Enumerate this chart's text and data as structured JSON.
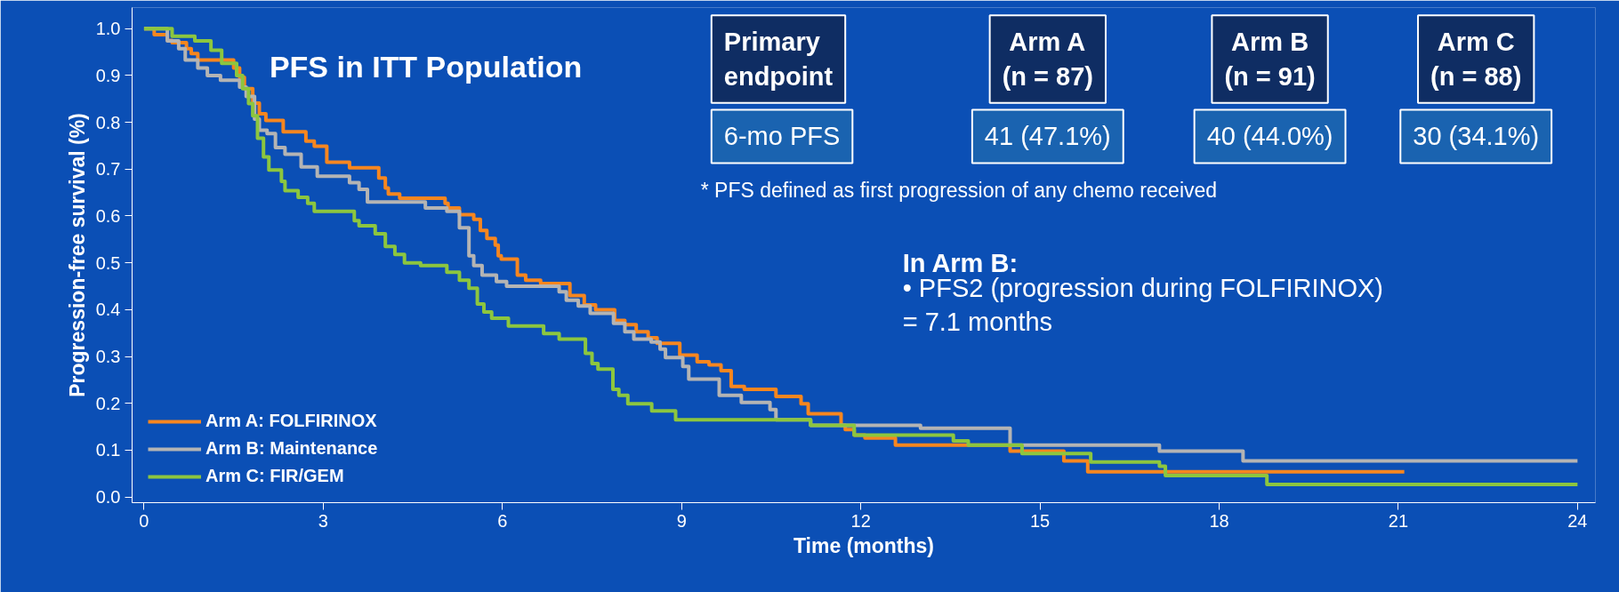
{
  "chart_data": {
    "type": "step",
    "title": "PFS in ITT Population",
    "xlabel": "Time (months)",
    "ylabel": "Progression-free survival (%)",
    "xlim": [
      -0.2,
      24.3
    ],
    "ylim": [
      -0.012,
      1.045
    ],
    "xticks": [
      0,
      3,
      6,
      9,
      12,
      15,
      18,
      21,
      24
    ],
    "yticks": [
      {
        "value": 0,
        "label": "0.0"
      },
      {
        "value": 0.1,
        "label": "0.1"
      },
      {
        "value": 0.2,
        "label": "0.2"
      },
      {
        "value": 0.3,
        "label": "0.3"
      },
      {
        "value": 0.4,
        "label": "0.4"
      },
      {
        "value": 0.5,
        "label": "0.5"
      },
      {
        "value": 0.6,
        "label": "0.6"
      },
      {
        "value": 0.7,
        "label": "0.7"
      },
      {
        "value": 0.8,
        "label": "0.8"
      },
      {
        "value": 0.9,
        "label": "0.9"
      },
      {
        "value": 1.0,
        "label": "1.0"
      }
    ],
    "grid": false,
    "legend": "bottom left",
    "marker": "none",
    "line_style": "solid",
    "series": [
      {
        "name": "Arm A: FOLFIRINOX",
        "color": "#f7861f",
        "x": [
          0,
          0.17,
          0.39,
          0.47,
          0.71,
          0.79,
          0.9,
          1.5,
          1.6,
          1.68,
          1.82,
          1.93,
          2.04,
          2.33,
          2.71,
          2.85,
          3.06,
          3.44,
          3.93,
          4.04,
          4.09,
          4.28,
          5.04,
          5.09,
          5.28,
          5.52,
          5.63,
          5.74,
          5.88,
          5.93,
          5.98,
          6.25,
          6.39,
          6.64,
          7.13,
          7.37,
          7.56,
          7.88,
          8.05,
          8.24,
          8.44,
          8.59,
          8.97,
          9.26,
          9.46,
          9.66,
          9.83,
          10.05,
          10.58,
          11.0,
          11.12,
          11.67,
          11.74,
          11.89,
          12.07,
          12.58,
          14.5,
          15.4,
          15.8,
          21.1
        ],
        "values": [
          1.0,
          0.987,
          0.975,
          0.97,
          0.957,
          0.947,
          0.933,
          0.916,
          0.896,
          0.872,
          0.841,
          0.818,
          0.804,
          0.78,
          0.76,
          0.749,
          0.715,
          0.703,
          0.681,
          0.66,
          0.647,
          0.638,
          0.627,
          0.617,
          0.603,
          0.593,
          0.569,
          0.552,
          0.538,
          0.515,
          0.508,
          0.474,
          0.463,
          0.456,
          0.43,
          0.41,
          0.4,
          0.377,
          0.368,
          0.353,
          0.34,
          0.328,
          0.303,
          0.289,
          0.282,
          0.27,
          0.236,
          0.23,
          0.215,
          0.199,
          0.178,
          0.153,
          0.144,
          0.132,
          0.126,
          0.111,
          0.098,
          0.077,
          0.054,
          0.054
        ]
      },
      {
        "name": "Arm B: Maintenance",
        "color": "#b4b4b4",
        "x": [
          0,
          0.39,
          0.58,
          0.69,
          0.9,
          1.06,
          1.28,
          1.6,
          1.71,
          1.85,
          1.93,
          2.06,
          2.2,
          2.36,
          2.63,
          2.9,
          3.44,
          3.6,
          3.74,
          4.71,
          5.07,
          5.28,
          5.44,
          5.52,
          5.66,
          5.9,
          6.07,
          6.95,
          7.07,
          7.27,
          7.47,
          7.86,
          8.05,
          8.2,
          8.49,
          8.64,
          8.73,
          9.02,
          9.12,
          9.63,
          10.0,
          10.48,
          10.58,
          11.16,
          13.0,
          14.5,
          17.0,
          18.4,
          24
        ],
        "values": [
          1.0,
          0.974,
          0.957,
          0.933,
          0.916,
          0.9,
          0.89,
          0.875,
          0.855,
          0.807,
          0.783,
          0.776,
          0.746,
          0.732,
          0.705,
          0.685,
          0.671,
          0.657,
          0.63,
          0.617,
          0.61,
          0.575,
          0.515,
          0.494,
          0.474,
          0.46,
          0.45,
          0.438,
          0.42,
          0.408,
          0.392,
          0.371,
          0.353,
          0.337,
          0.331,
          0.316,
          0.298,
          0.279,
          0.252,
          0.217,
          0.202,
          0.187,
          0.165,
          0.153,
          0.147,
          0.111,
          0.098,
          0.077,
          0.077
        ]
      },
      {
        "name": "Arm C: FIR/GEM",
        "color": "#8cc63f",
        "x": [
          0,
          0.47,
          0.85,
          1.12,
          1.3,
          1.55,
          1.65,
          1.75,
          1.82,
          1.9,
          2.0,
          2.09,
          2.3,
          2.36,
          2.58,
          2.74,
          2.85,
          3.52,
          3.6,
          3.87,
          4.04,
          4.2,
          4.36,
          4.63,
          5.07,
          5.28,
          5.44,
          5.58,
          5.69,
          5.82,
          6.1,
          6.69,
          6.95,
          7.39,
          7.5,
          7.6,
          7.85,
          7.95,
          8.1,
          8.5,
          8.9,
          11.16,
          11.89,
          13.55,
          13.8,
          14.7,
          15.85,
          17.0,
          17.1,
          18.8,
          24
        ],
        "values": [
          1.0,
          0.984,
          0.974,
          0.954,
          0.926,
          0.9,
          0.872,
          0.84,
          0.814,
          0.766,
          0.726,
          0.698,
          0.674,
          0.654,
          0.64,
          0.627,
          0.61,
          0.59,
          0.579,
          0.562,
          0.535,
          0.518,
          0.5,
          0.494,
          0.48,
          0.463,
          0.446,
          0.412,
          0.395,
          0.382,
          0.365,
          0.349,
          0.337,
          0.307,
          0.285,
          0.273,
          0.23,
          0.217,
          0.199,
          0.184,
          0.165,
          0.153,
          0.132,
          0.12,
          0.111,
          0.093,
          0.075,
          0.066,
          0.046,
          0.027,
          0.027
        ]
      }
    ],
    "annotations": [
      "Primary\nendpoint",
      "Arm A\n(n = 87)",
      "Arm B\n(n = 91)",
      "Arm C\n(n = 88)",
      "6-mo PFS",
      "41 (47.1%)",
      "40 (44.0%)",
      "30 (34.1%)",
      "* PFS defined as first progression of any chemo received",
      "In Arm B:",
      "•  PFS2 (progression during FOLFIRINOX)\n    = 7.1 months"
    ]
  }
}
